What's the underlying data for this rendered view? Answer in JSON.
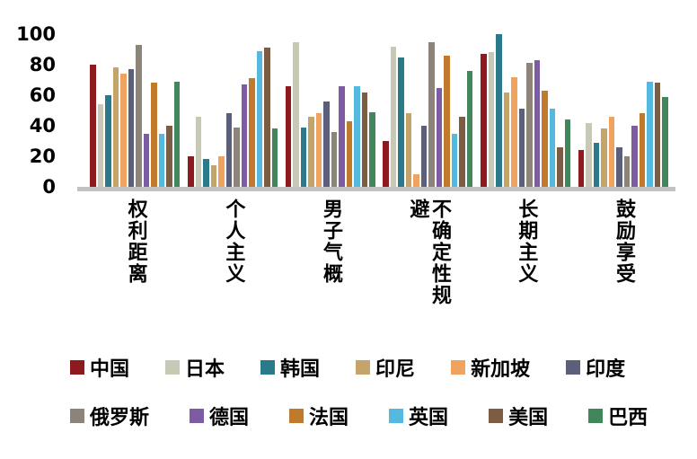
{
  "chart_data": {
    "type": "bar",
    "title": "",
    "xlabel": "",
    "ylabel": "",
    "ylim": [
      0,
      100
    ],
    "yticks": [
      0,
      20,
      40,
      60,
      80,
      100
    ],
    "grid": false,
    "legend_position": "bottom",
    "axis_line_color": "#c2c2c2",
    "categories": [
      "权利距离",
      "个人主义",
      "男子气概",
      "不确定性规避",
      "长期主义",
      "鼓励享受"
    ],
    "series": [
      {
        "name": "中国",
        "color": "#8c1a1e",
        "values": [
          80,
          20,
          66,
          30,
          87,
          24
        ]
      },
      {
        "name": "日本",
        "color": "#c8c8b6",
        "values": [
          54,
          46,
          95,
          92,
          88,
          42
        ]
      },
      {
        "name": "韩国",
        "color": "#2a7a8c",
        "values": [
          60,
          18,
          39,
          85,
          100,
          29
        ]
      },
      {
        "name": "印尼",
        "color": "#c4a469",
        "values": [
          78,
          14,
          46,
          48,
          62,
          38
        ]
      },
      {
        "name": "新加坡",
        "color": "#f0a35f",
        "values": [
          74,
          20,
          48,
          8,
          72,
          46
        ]
      },
      {
        "name": "印度",
        "color": "#5b5f79",
        "values": [
          77,
          48,
          56,
          40,
          51,
          26
        ]
      },
      {
        "name": "俄罗斯",
        "color": "#8c8478",
        "values": [
          93,
          39,
          36,
          95,
          81,
          20
        ]
      },
      {
        "name": "德国",
        "color": "#7d5ca4",
        "values": [
          35,
          67,
          66,
          65,
          83,
          40
        ]
      },
      {
        "name": "法国",
        "color": "#c17a2b",
        "values": [
          68,
          71,
          43,
          86,
          63,
          48
        ]
      },
      {
        "name": "英国",
        "color": "#55b8df",
        "values": [
          35,
          89,
          66,
          35,
          51,
          69
        ]
      },
      {
        "name": "美国",
        "color": "#7c5c42",
        "values": [
          40,
          91,
          62,
          46,
          26,
          68
        ]
      },
      {
        "name": "巴西",
        "color": "#42875c",
        "values": [
          69,
          38,
          49,
          76,
          44,
          59
        ]
      }
    ]
  }
}
